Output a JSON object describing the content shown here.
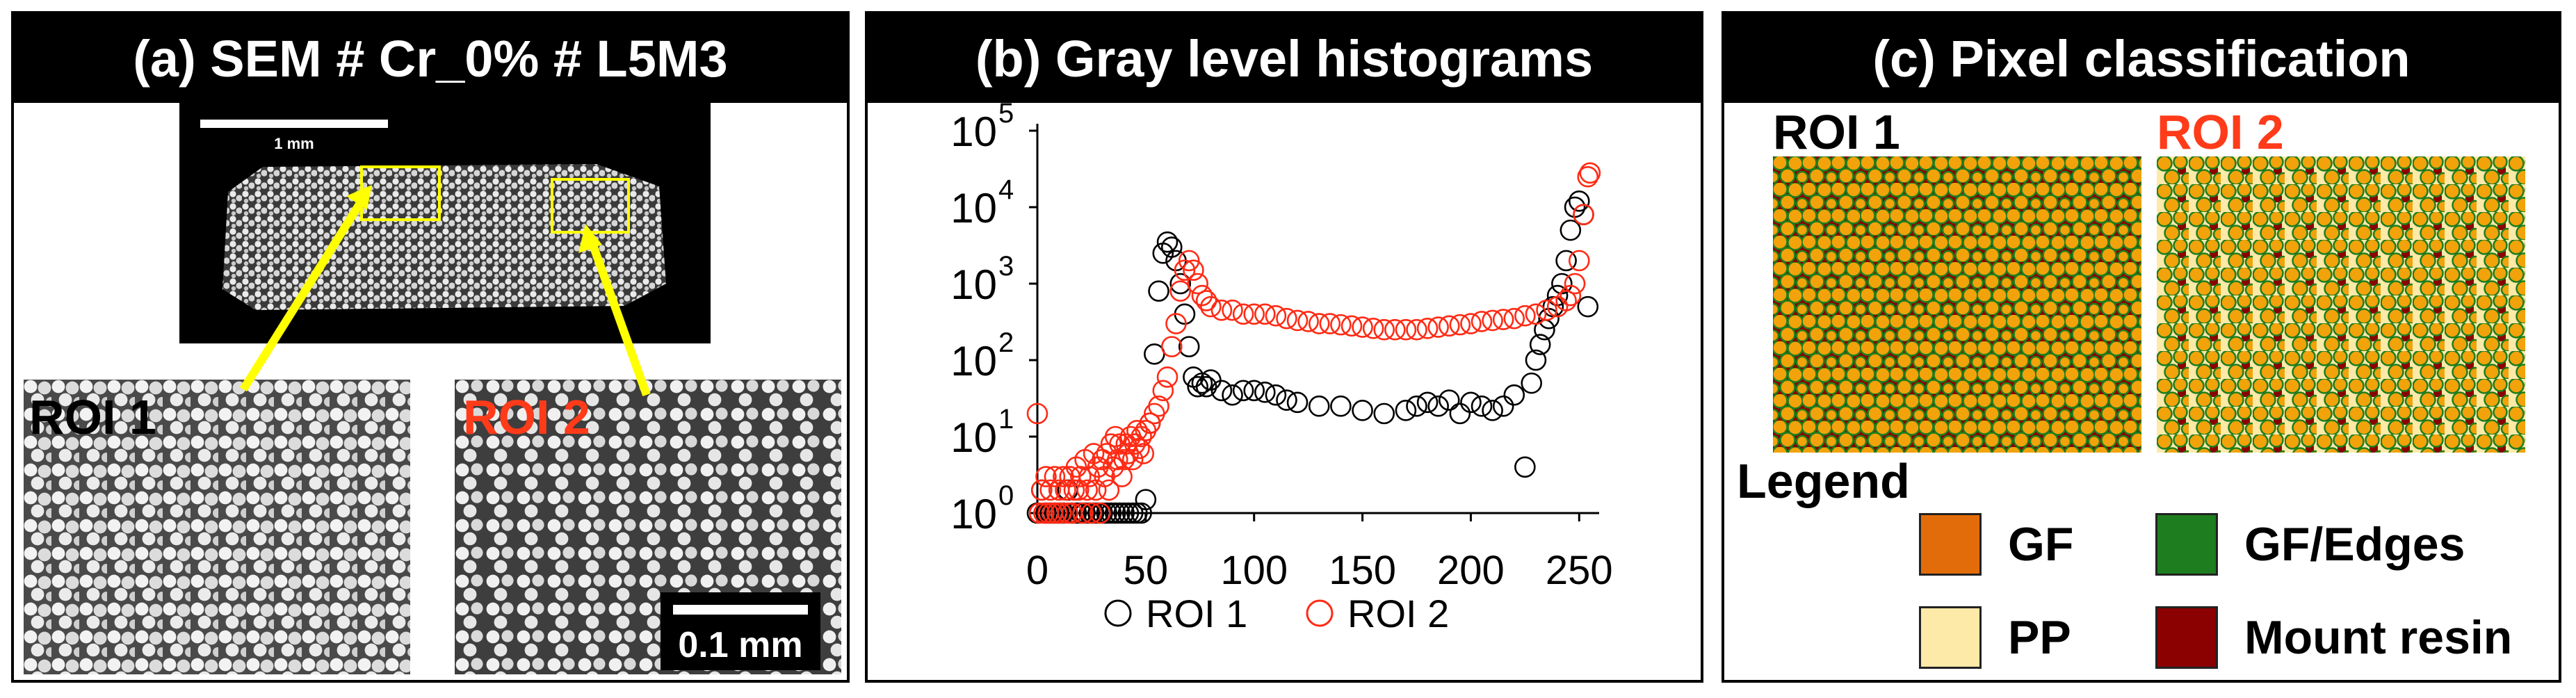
{
  "panel_a": {
    "title": "(a) SEM # Cr_0% # L5M3",
    "overview_scale": "1 mm",
    "roi1_label": "ROI 1",
    "roi2_label": "ROI 2",
    "micro_scale": "0.1 mm"
  },
  "panel_b": {
    "title": "(b) Gray level histograms"
  },
  "panel_c": {
    "title": "(c) Pixel classification",
    "roi1_label": "ROI 1",
    "roi2_label": "ROI 2",
    "legend_title": "Legend",
    "legend": [
      {
        "label": "GF",
        "color": "#e36c0a"
      },
      {
        "label": "GF/Edges",
        "color": "#1e7d1e"
      },
      {
        "label": "PP",
        "color": "#fde9a8"
      },
      {
        "label": "Mount resin",
        "color": "#8b0000"
      }
    ]
  },
  "colors": {
    "roi1": "#000000",
    "roi2": "#ff2a14",
    "gf_fill": "#f2a20a",
    "resin": "#8b0000",
    "edges": "#1e7d1e",
    "pp": "#fde9a8"
  },
  "chart_data": {
    "type": "scatter",
    "title": "(b) Gray level histograms",
    "xlabel": "",
    "ylabel": "",
    "x_scale": "linear",
    "y_scale": "log",
    "xlim": [
      0,
      256
    ],
    "ylim": [
      1,
      100000
    ],
    "xticks": [
      "0",
      "50",
      "100",
      "150",
      "200",
      "250"
    ],
    "yticks": [
      {
        "base": "10",
        "exp": "0"
      },
      {
        "base": "10",
        "exp": "1"
      },
      {
        "base": "10",
        "exp": "2"
      },
      {
        "base": "10",
        "exp": "3"
      },
      {
        "base": "10",
        "exp": "4"
      },
      {
        "base": "10",
        "exp": "5"
      }
    ],
    "legend_position": "bottom",
    "series": [
      {
        "name": "ROI 1",
        "marker": "open-circle",
        "color": "#000000",
        "x": [
          0,
          2,
          4,
          6,
          8,
          10,
          12,
          14,
          16,
          18,
          20,
          22,
          24,
          26,
          28,
          30,
          32,
          34,
          36,
          38,
          40,
          42,
          44,
          46,
          48,
          50,
          52,
          54,
          56,
          58,
          60,
          62,
          64,
          66,
          68,
          70,
          72,
          74,
          76,
          78,
          80,
          85,
          90,
          95,
          100,
          105,
          110,
          115,
          120,
          130,
          140,
          150,
          160,
          170,
          175,
          180,
          185,
          190,
          195,
          200,
          205,
          210,
          215,
          220,
          225,
          228,
          230,
          232,
          234,
          236,
          238,
          240,
          242,
          244,
          246,
          248,
          250,
          252,
          254
        ],
        "y": [
          1,
          2,
          1,
          1,
          1,
          1,
          1,
          2,
          1,
          1,
          1,
          1,
          1,
          1,
          1,
          1,
          1,
          1,
          1,
          1,
          1,
          1,
          1,
          1,
          1,
          1.5,
          15,
          120,
          800,
          2500,
          3500,
          3000,
          2000,
          1000,
          400,
          150,
          60,
          45,
          50,
          45,
          55,
          40,
          35,
          40,
          40,
          38,
          35,
          30,
          28,
          25,
          25,
          22,
          20,
          22,
          25,
          28,
          25,
          30,
          20,
          28,
          25,
          22,
          25,
          35,
          4,
          50,
          100,
          160,
          250,
          350,
          500,
          700,
          1000,
          2000,
          5000,
          10000,
          12000,
          8000,
          500
        ]
      },
      {
        "name": "ROI 2",
        "marker": "open-circle",
        "color": "#ff2a14",
        "x": [
          0,
          1,
          2,
          3,
          4,
          5,
          6,
          7,
          8,
          9,
          10,
          11,
          12,
          13,
          14,
          15,
          16,
          17,
          18,
          19,
          20,
          21,
          22,
          23,
          24,
          25,
          26,
          27,
          28,
          29,
          30,
          31,
          32,
          33,
          34,
          35,
          36,
          37,
          38,
          39,
          40,
          41,
          42,
          43,
          44,
          45,
          46,
          47,
          48,
          49,
          50,
          52,
          54,
          56,
          58,
          60,
          62,
          64,
          66,
          68,
          70,
          72,
          74,
          76,
          78,
          80,
          85,
          90,
          95,
          100,
          105,
          110,
          115,
          120,
          125,
          130,
          135,
          140,
          145,
          150,
          155,
          160,
          165,
          170,
          175,
          180,
          185,
          190,
          195,
          200,
          205,
          210,
          215,
          220,
          225,
          230,
          235,
          240,
          244,
          246,
          248,
          250,
          252,
          254,
          255
        ],
        "y": [
          20,
          1,
          2,
          1,
          3,
          1,
          2,
          1,
          3,
          1,
          2,
          1,
          3,
          2,
          1,
          3,
          1,
          2,
          4,
          2,
          3,
          1,
          5,
          2,
          3,
          1,
          6,
          2,
          4,
          1,
          5,
          3,
          6,
          2,
          8,
          4,
          10,
          5,
          8,
          3,
          5,
          8,
          6,
          10,
          5,
          8,
          12,
          7,
          10,
          6,
          12,
          15,
          20,
          25,
          40,
          60,
          150,
          300,
          800,
          1500,
          2000,
          1500,
          1000,
          700,
          600,
          500,
          450,
          450,
          400,
          400,
          400,
          380,
          350,
          330,
          320,
          300,
          300,
          290,
          280,
          270,
          260,
          250,
          250,
          250,
          250,
          260,
          270,
          280,
          290,
          300,
          320,
          330,
          340,
          350,
          380,
          400,
          450,
          500,
          600,
          700,
          1000,
          2000,
          8000,
          25000,
          28000
        ]
      }
    ]
  }
}
